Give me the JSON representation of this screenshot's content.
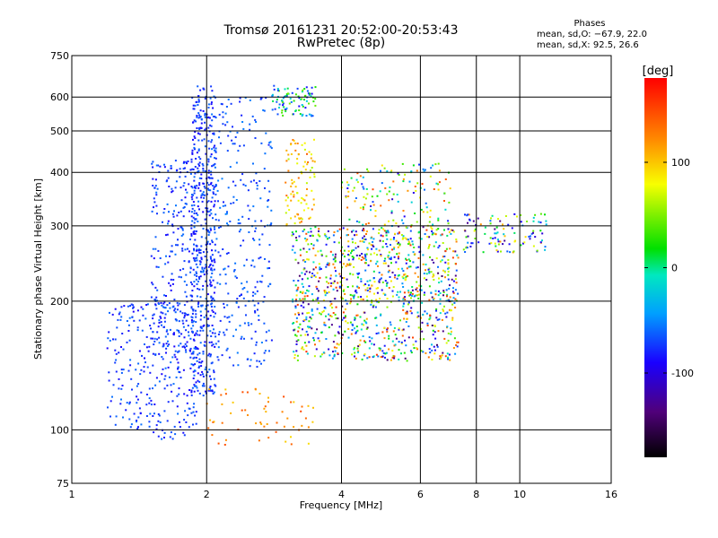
{
  "title_line1": "Tromsø 20161231 20:52:00-20:53:43",
  "title_line2": "RwPretec (8p)",
  "phase_box": {
    "title": "Phases",
    "line_o": "mean, sd,O: −67.9, 22.0",
    "line_x": "mean, sd,X:  92.5, 26.6"
  },
  "chart_data": {
    "type": "scatter",
    "title": "Tromsø 20161231 20:52:00-20:53:43",
    "subtitle": "RwPretec (8p)",
    "xlabel": "Frequency [MHz]",
    "ylabel": "Stationary phase Virtual Height [km]",
    "xscale": "log",
    "yscale": "log",
    "xlim": [
      1,
      16
    ],
    "ylim": [
      75,
      750
    ],
    "xticks": [
      1,
      2,
      4,
      6,
      8,
      10,
      16
    ],
    "yticks": [
      75,
      100,
      200,
      300,
      400,
      500,
      600,
      750
    ],
    "grid": true,
    "colorbar": {
      "label": "[deg]",
      "ticks": [
        100,
        0,
        -100
      ],
      "range": [
        -180,
        180
      ],
      "placement": "right"
    },
    "clusters": [
      {
        "name": "o-trace-vertical",
        "x_range": [
          1.85,
          2.1
        ],
        "y_range": [
          120,
          640
        ],
        "phase_range": [
          -100,
          -60
        ],
        "n": 520
      },
      {
        "name": "o-trace-slope",
        "x_range": [
          1.5,
          1.9
        ],
        "y_range": [
          150,
          430
        ],
        "phase_range": [
          -100,
          -60
        ],
        "n": 260
      },
      {
        "name": "o-trace-low",
        "x_range": [
          1.2,
          1.9
        ],
        "y_range": [
          95,
          200
        ],
        "phase_range": [
          -100,
          -60
        ],
        "n": 280
      },
      {
        "name": "o-trace-mid",
        "x_range": [
          2.1,
          2.8
        ],
        "y_range": [
          140,
          600
        ],
        "phase_range": [
          -90,
          -55
        ],
        "n": 260
      },
      {
        "name": "upper-band",
        "x_range": [
          2.8,
          3.5
        ],
        "y_range": [
          540,
          640
        ],
        "phase_range": [
          -100,
          50
        ],
        "n": 90
      },
      {
        "name": "x-trace-high",
        "x_range": [
          3.0,
          3.5
        ],
        "y_range": [
          300,
          480
        ],
        "phase_range": [
          60,
          140
        ],
        "n": 90
      },
      {
        "name": "x-trace-spread",
        "x_range": [
          3.1,
          7.3
        ],
        "y_range": [
          145,
          300
        ],
        "phase_range": [
          -150,
          160
        ],
        "n": 900
      },
      {
        "name": "x-trace-mid",
        "x_range": [
          4.0,
          7.0
        ],
        "y_range": [
          200,
          420
        ],
        "phase_range": [
          -120,
          150
        ],
        "n": 280
      },
      {
        "name": "low-echoes",
        "x_range": [
          2.0,
          3.5
        ],
        "y_range": [
          92,
          125
        ],
        "phase_range": [
          90,
          150
        ],
        "n": 60
      },
      {
        "name": "far-right",
        "x_range": [
          7.5,
          11.5
        ],
        "y_range": [
          260,
          320
        ],
        "phase_range": [
          -140,
          120
        ],
        "n": 110
      }
    ]
  }
}
